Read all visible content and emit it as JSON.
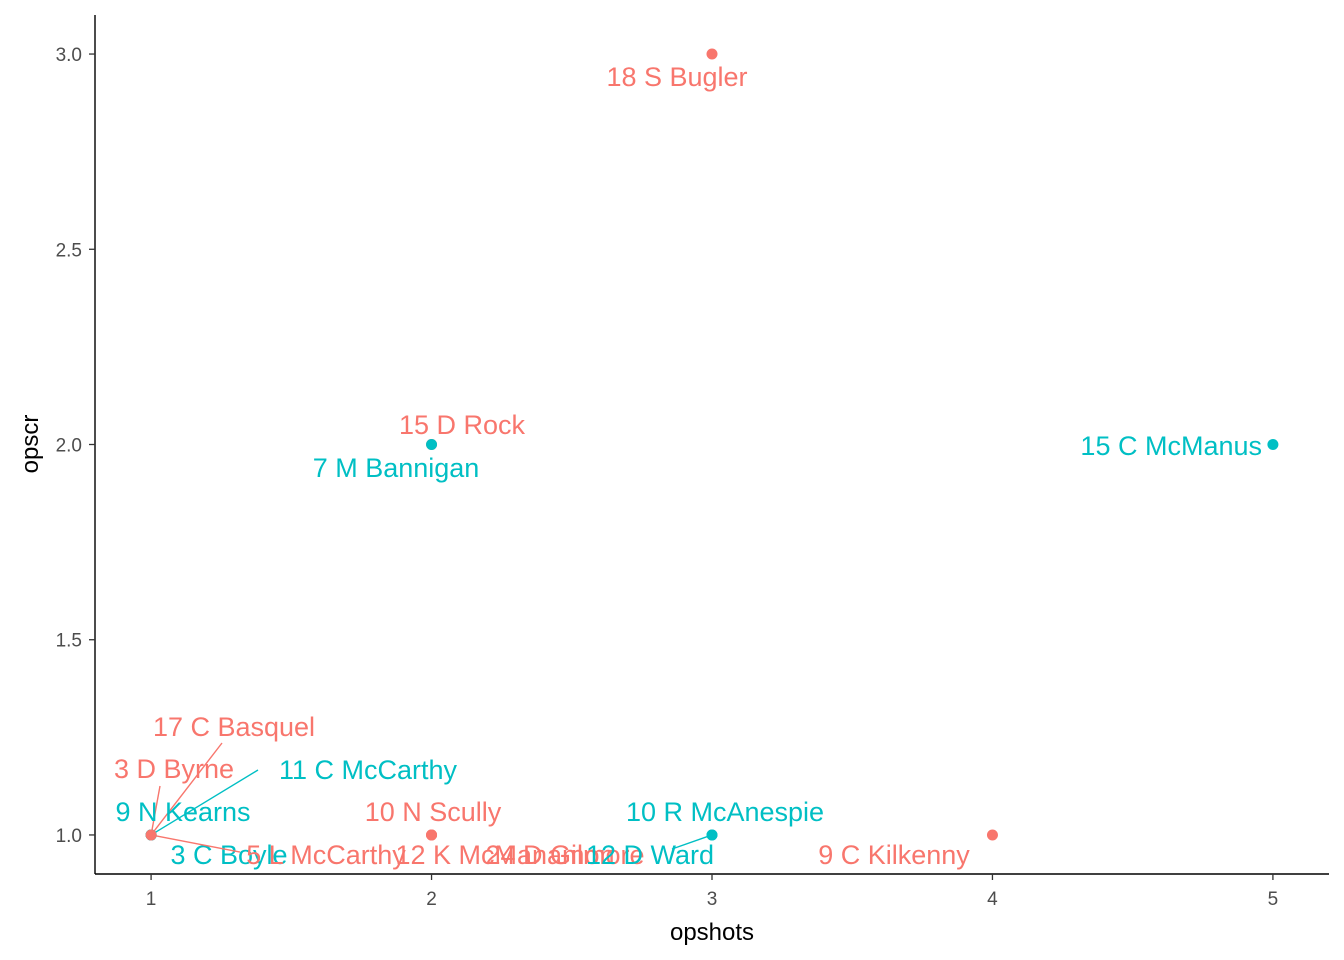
{
  "chart_data": {
    "type": "scatter",
    "xlabel": "opshots",
    "ylabel": "opscr",
    "xlim": [
      0.8,
      5.2
    ],
    "ylim": [
      0.9,
      3.1
    ],
    "x_ticks": [
      1,
      2,
      3,
      4,
      5
    ],
    "y_ticks": [
      1.0,
      1.5,
      2.0,
      2.5,
      3.0
    ],
    "y_tick_labels": [
      "1.0",
      "1.5",
      "2.0",
      "2.5",
      "3.0"
    ],
    "grid": false,
    "legend": "none",
    "colors": {
      "red": "#F8766D",
      "cyan": "#00BFC4"
    },
    "points": [
      {
        "label": "18  S Bugler",
        "x": 3,
        "y": 3.0,
        "color": "red"
      },
      {
        "label": "15  D Rock",
        "x": 2,
        "y": 2.0,
        "color": "red"
      },
      {
        "label": "7  M Bannigan",
        "x": 2,
        "y": 2.0,
        "color": "cyan"
      },
      {
        "label": "15  C McManus",
        "x": 5,
        "y": 2.0,
        "color": "cyan"
      },
      {
        "label": "17  C Basquel",
        "x": 1,
        "y": 1.0,
        "color": "red"
      },
      {
        "label": "3  D Byrne",
        "x": 1,
        "y": 1.0,
        "color": "red"
      },
      {
        "label": "11  C McCarthy",
        "x": 1,
        "y": 1.0,
        "color": "cyan"
      },
      {
        "label": "9  N Kearns",
        "x": 1,
        "y": 1.0,
        "color": "cyan"
      },
      {
        "label": "3  C Boyle",
        "x": 1,
        "y": 1.0,
        "color": "cyan"
      },
      {
        "label": "5  L McCarthy",
        "x": 1,
        "y": 1.0,
        "color": "red"
      },
      {
        "label": "10  N Scully",
        "x": 2,
        "y": 1.0,
        "color": "red"
      },
      {
        "label": "12  K McManamon",
        "x": 2,
        "y": 1.0,
        "color": "red"
      },
      {
        "label": "24  D Gilmore",
        "x": 2,
        "y": 1.0,
        "color": "red"
      },
      {
        "label": "10  R McAnespie",
        "x": 3,
        "y": 1.0,
        "color": "cyan"
      },
      {
        "label": "12  D Ward",
        "x": 3,
        "y": 1.0,
        "color": "cyan"
      },
      {
        "label": "9  C Kilkenny",
        "x": 4,
        "y": 1.0,
        "color": "red"
      }
    ]
  }
}
